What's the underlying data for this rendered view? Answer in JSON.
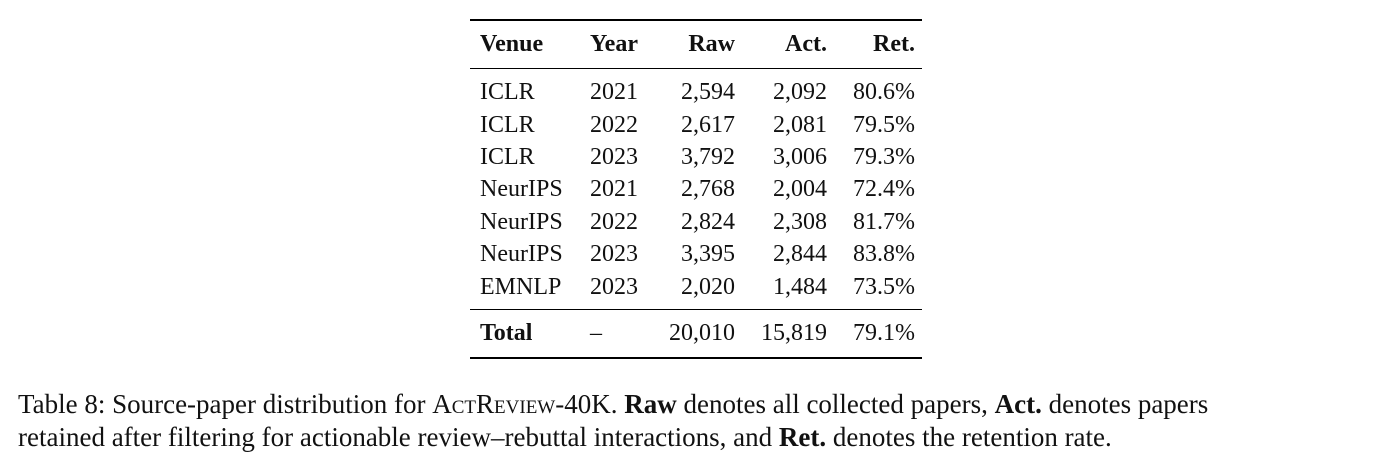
{
  "table": {
    "header": [
      "Venue",
      "Year",
      "Raw",
      "Act.",
      "Ret."
    ],
    "rows": [
      [
        "ICLR",
        "2021",
        "2,594",
        "2,092",
        "80.6%"
      ],
      [
        "ICLR",
        "2022",
        "2,617",
        "2,081",
        "79.5%"
      ],
      [
        "ICLR",
        "2023",
        "3,792",
        "3,006",
        "79.3%"
      ],
      [
        "NeurIPS",
        "2021",
        "2,768",
        "2,004",
        "72.4%"
      ],
      [
        "NeurIPS",
        "2022",
        "2,824",
        "2,308",
        "81.7%"
      ],
      [
        "NeurIPS",
        "2023",
        "3,395",
        "2,844",
        "83.8%"
      ],
      [
        "EMNLP",
        "2023",
        "2,020",
        "1,484",
        "73.5%"
      ]
    ],
    "total": [
      "Total",
      "–",
      "20,010",
      "15,819",
      "79.1%"
    ]
  },
  "caption": {
    "lines": [
      [
        "Table 8: Source-paper distribution for ",
        "ActReview-40K",
        ". ",
        "Raw",
        " denotes all collected papers, ",
        "Act.",
        " denotes papers"
      ],
      [
        "retained after filtering for actionable review–rebuttal interactions, and ",
        "Ret.",
        " denotes the retention rate."
      ]
    ]
  }
}
